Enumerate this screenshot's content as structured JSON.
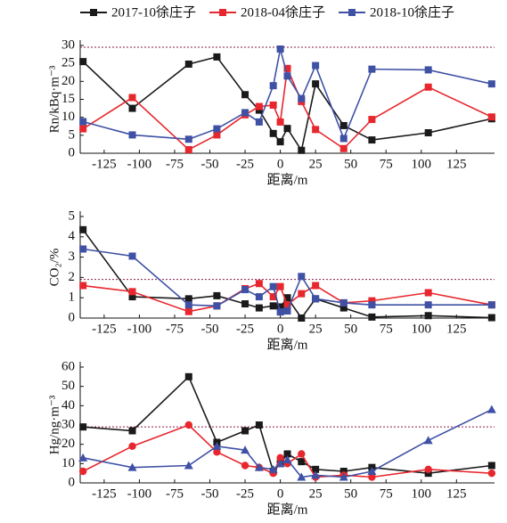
{
  "chart_data": [
    {
      "type": "line",
      "ylabel": "Rn/kBq·m⁻³",
      "xlabel": "距离/m",
      "x": [
        -140,
        -105,
        -65,
        -45,
        -25,
        -15,
        -5,
        0,
        5,
        15,
        25,
        45,
        65,
        105,
        150
      ],
      "xlim": [
        -142,
        152
      ],
      "xticks": [
        -125,
        -100,
        -75,
        -50,
        -25,
        0,
        25,
        50,
        75,
        100,
        125
      ],
      "ylim": [
        0,
        30
      ],
      "yticks": [
        0,
        5,
        10,
        15,
        20,
        25,
        30
      ],
      "reference_line": 29.5,
      "series": [
        {
          "name": "2017-10徐庄子",
          "color": "#1a1a1a",
          "marker": "square",
          "values": [
            25.5,
            12.5,
            24.8,
            26.8,
            16.3,
            12,
            5.5,
            3.2,
            6.9,
            0.8,
            19.3,
            7.7,
            3.7,
            5.7,
            9.6
          ]
        },
        {
          "name": "2018-04徐庄子",
          "color": "#e8262d",
          "marker": "square",
          "values": [
            6.8,
            15.5,
            1,
            5.1,
            10.7,
            13,
            13.4,
            8.7,
            23.6,
            14.4,
            6.6,
            1.3,
            9.4,
            18.4,
            10.1
          ]
        },
        {
          "name": "2018-10徐庄子",
          "color": "#3f51a5",
          "marker": "square",
          "values": [
            8.8,
            5.1,
            3.9,
            6.8,
            11.3,
            8.7,
            18.8,
            29,
            21.5,
            15.2,
            24.4,
            4.1,
            23.4,
            23.2,
            19.3
          ]
        }
      ]
    },
    {
      "type": "line",
      "ylabel": "CO₂/%",
      "xlabel": "距离/m",
      "x": [
        -140,
        -105,
        -65,
        -45,
        -25,
        -15,
        -5,
        0,
        5,
        15,
        25,
        45,
        65,
        105,
        150
      ],
      "xlim": [
        -142,
        152
      ],
      "xticks": [
        -125,
        -100,
        -75,
        -50,
        -25,
        0,
        25,
        50,
        75,
        100,
        125
      ],
      "ylim": [
        0,
        5
      ],
      "yticks": [
        0,
        1,
        2,
        3,
        4,
        5
      ],
      "reference_line": 1.9,
      "series": [
        {
          "color": "#1a1a1a",
          "marker": "square",
          "values": [
            4.35,
            1.05,
            0.95,
            1.1,
            0.7,
            0.5,
            0.6,
            0.55,
            1.0,
            0.0,
            0.95,
            0.5,
            0.05,
            0.12,
            0.02
          ]
        },
        {
          "color": "#e8262d",
          "marker": "square",
          "values": [
            1.6,
            1.3,
            0.32,
            0.6,
            1.45,
            1.7,
            1.05,
            1.55,
            0.65,
            1.2,
            1.6,
            0.75,
            0.85,
            1.25,
            0.65
          ]
        },
        {
          "color": "#3f51a5",
          "marker": "square",
          "values": [
            3.4,
            3.05,
            0.65,
            0.6,
            1.4,
            1.05,
            1.55,
            0.3,
            0.35,
            2.05,
            0.95,
            0.75,
            0.65,
            0.65,
            0.65
          ]
        }
      ]
    },
    {
      "type": "line",
      "ylabel": "Hg/ng·m⁻³",
      "xlabel": "距离/m",
      "x": [
        -140,
        -105,
        -65,
        -45,
        -25,
        -15,
        -5,
        0,
        5,
        15,
        25,
        45,
        65,
        105,
        150
      ],
      "xlim": [
        -142,
        152
      ],
      "xticks": [
        -125,
        -100,
        -75,
        -50,
        -25,
        0,
        25,
        50,
        75,
        100,
        125
      ],
      "ylim": [
        0,
        60
      ],
      "yticks": [
        0,
        10,
        20,
        30,
        40,
        50,
        60
      ],
      "reference_line": 29,
      "series": [
        {
          "color": "#1a1a1a",
          "marker": "square",
          "values": [
            29,
            27,
            55,
            21,
            27,
            30,
            6,
            10,
            15,
            11,
            7,
            6,
            8,
            5,
            9
          ]
        },
        {
          "color": "#e8262d",
          "marker": "circle",
          "values": [
            6,
            19,
            30,
            16,
            9,
            8,
            5,
            13,
            10,
            15,
            3,
            4,
            3,
            7,
            5
          ]
        },
        {
          "color": "#3f51a5",
          "marker": "triangle",
          "values": [
            13,
            8,
            9,
            19,
            17,
            8,
            7,
            10,
            12,
            3,
            4,
            3,
            6,
            22,
            38
          ]
        }
      ]
    }
  ]
}
